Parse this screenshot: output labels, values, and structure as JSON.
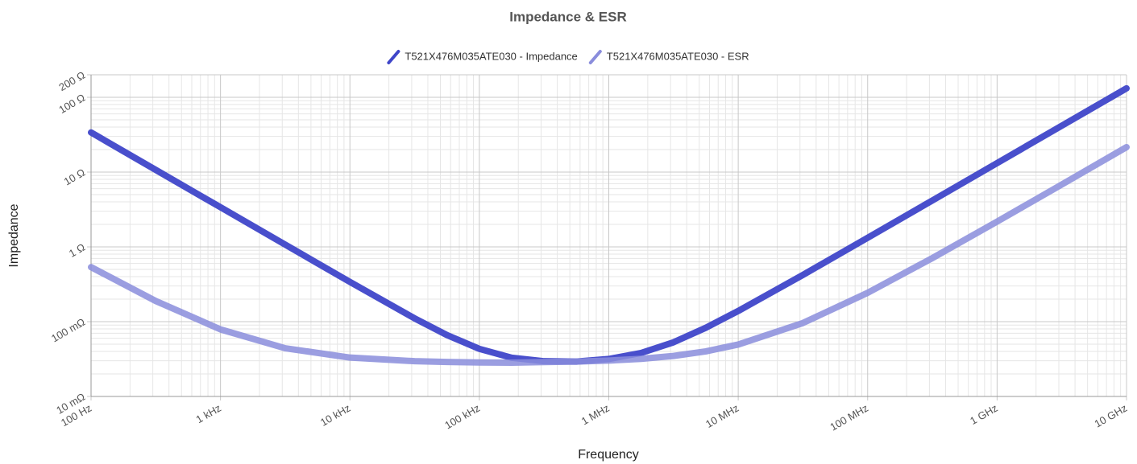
{
  "chart_data": {
    "type": "line",
    "title": "Impedance & ESR",
    "x_label": "Frequency",
    "y_label": "Impedance",
    "log_x": true,
    "log_y": true,
    "grid": true,
    "legend": "top",
    "x": [
      100,
      316,
      1000,
      3162,
      10000,
      31623,
      56234,
      100000,
      177828,
      316228,
      562341,
      1000000,
      1778279,
      3162278,
      5623413,
      10000000,
      31622777,
      100000000,
      316227766,
      1000000000,
      3162277660,
      10000000000
    ],
    "series": [
      {
        "name": "T521X476M035ATE030 - Impedance",
        "color": "#3f46c9",
        "values": [
          33.87,
          10.71,
          3.387,
          1.072,
          0.34,
          0.1107,
          0.0661,
          0.0433,
          0.0329,
          0.0296,
          0.0293,
          0.0317,
          0.0382,
          0.053,
          0.0829,
          0.139,
          0.422,
          1.323,
          4.173,
          13.19,
          41.69,
          131.8
        ]
      },
      {
        "name": "T521X476M035ATE030 - ESR",
        "color": "#8a8ddc",
        "values": [
          0.536,
          0.189,
          0.0788,
          0.0441,
          0.0331,
          0.0296,
          0.0289,
          0.0285,
          0.0283,
          0.0288,
          0.0293,
          0.0302,
          0.0318,
          0.0348,
          0.0401,
          0.0495,
          0.096,
          0.243,
          0.708,
          2.178,
          6.827,
          21.53
        ]
      }
    ],
    "xlim": [
      100,
      10000000000
    ],
    "xticks": [
      {
        "value": 100,
        "label": "100 Hz"
      },
      {
        "value": 1000,
        "label": "1 kHz"
      },
      {
        "value": 10000,
        "label": "10 kHz"
      },
      {
        "value": 100000,
        "label": "100 kHz"
      },
      {
        "value": 1000000,
        "label": "1 MHz"
      },
      {
        "value": 10000000,
        "label": "10 MHz"
      },
      {
        "value": 100000000,
        "label": "100 MHz"
      },
      {
        "value": 1000000000,
        "label": "1 GHz"
      },
      {
        "value": 10000000000,
        "label": "10 GHz"
      }
    ],
    "ylim": [
      0.01,
      200
    ],
    "yticks": [
      {
        "value": 0.01,
        "label": "10 mΩ"
      },
      {
        "value": 0.1,
        "label": "100 mΩ"
      },
      {
        "value": 1,
        "label": "1 Ω"
      },
      {
        "value": 10,
        "label": "10 Ω"
      },
      {
        "value": 100,
        "label": "100 Ω"
      },
      {
        "value": 200,
        "label": "200 Ω"
      }
    ]
  }
}
